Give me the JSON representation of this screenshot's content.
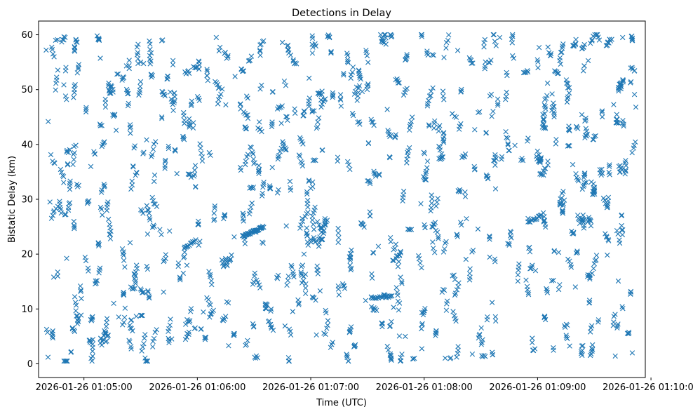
{
  "chart_data": {
    "type": "scatter",
    "title": "Detections in Delay",
    "xlabel": "Time (UTC)",
    "ylabel": "Bistatic Delay (km)",
    "x_type": "time",
    "xlim": [
      "2026-01-26 01:04:36",
      "2026-01-26 01:09:57"
    ],
    "ylim": [
      -2.5,
      62.5
    ],
    "x_ticks": [
      "2026-01-26 01:05:00",
      "2026-01-26 01:06:00",
      "2026-01-26 01:07:00",
      "2026-01-26 01:08:00",
      "2026-01-26 01:09:00",
      "2026-01-26 01:10:00"
    ],
    "y_ticks": [
      0,
      10,
      20,
      30,
      40,
      50,
      60
    ],
    "grid": false,
    "legend": "none",
    "marker": "x",
    "marker_color": "#1f77b4",
    "x_range": [
      "2026-01-26 01:04:40",
      "2026-01-26 01:09:52"
    ],
    "y_range": [
      0.5,
      60
    ],
    "point_count": 2000,
    "series": [
      {
        "points_sample": [
          [
            "2026-01-26 01:04:40",
            57.2
          ],
          [
            "2026-01-26 01:04:45",
            59.0
          ],
          [
            "2026-01-26 01:04:42",
            29.5
          ],
          [
            "2026-01-26 01:04:44",
            15.8
          ],
          [
            "2026-01-26 01:04:41",
            1.2
          ],
          [
            "2026-01-26 01:05:07",
            59.8
          ],
          [
            "2026-01-26 01:05:30",
            55.0
          ],
          [
            "2026-01-26 01:06:10",
            59.5
          ],
          [
            "2026-01-26 01:06:31",
            24.0
          ],
          [
            "2026-01-26 01:06:45",
            58.6
          ],
          [
            "2026-01-26 01:07:00",
            32.0
          ],
          [
            "2026-01-26 01:07:32",
            12.2
          ],
          [
            "2026-01-26 01:07:50",
            5.0
          ],
          [
            "2026-01-26 01:08:10",
            41.0
          ],
          [
            "2026-01-26 01:08:40",
            59.5
          ],
          [
            "2026-01-26 01:08:55",
            26.5
          ],
          [
            "2026-01-26 01:09:20",
            14.0
          ],
          [
            "2026-01-26 01:09:45",
            59.5
          ],
          [
            "2026-01-26 01:09:50",
            59.2
          ],
          [
            "2026-01-26 01:09:52",
            46.8
          ]
        ],
        "clusters": [
          {
            "x_from": "2026-01-26 01:06:24",
            "x_to": "2026-01-26 01:06:35",
            "y_from": 23.2,
            "y_to": 25.0,
            "count": 40
          },
          {
            "x_from": "2026-01-26 01:07:32",
            "x_to": "2026-01-26 01:07:43",
            "y_from": 12.0,
            "y_to": 12.3,
            "count": 18
          },
          {
            "x_from": "2026-01-26 01:08:55",
            "x_to": "2026-01-26 01:09:02",
            "y_from": 25.8,
            "y_to": 27.0,
            "count": 14
          },
          {
            "x_from": "2026-01-26 01:05:53",
            "x_to": "2026-01-26 01:05:59",
            "y_from": 21.0,
            "y_to": 22.5,
            "count": 12
          }
        ]
      }
    ]
  }
}
